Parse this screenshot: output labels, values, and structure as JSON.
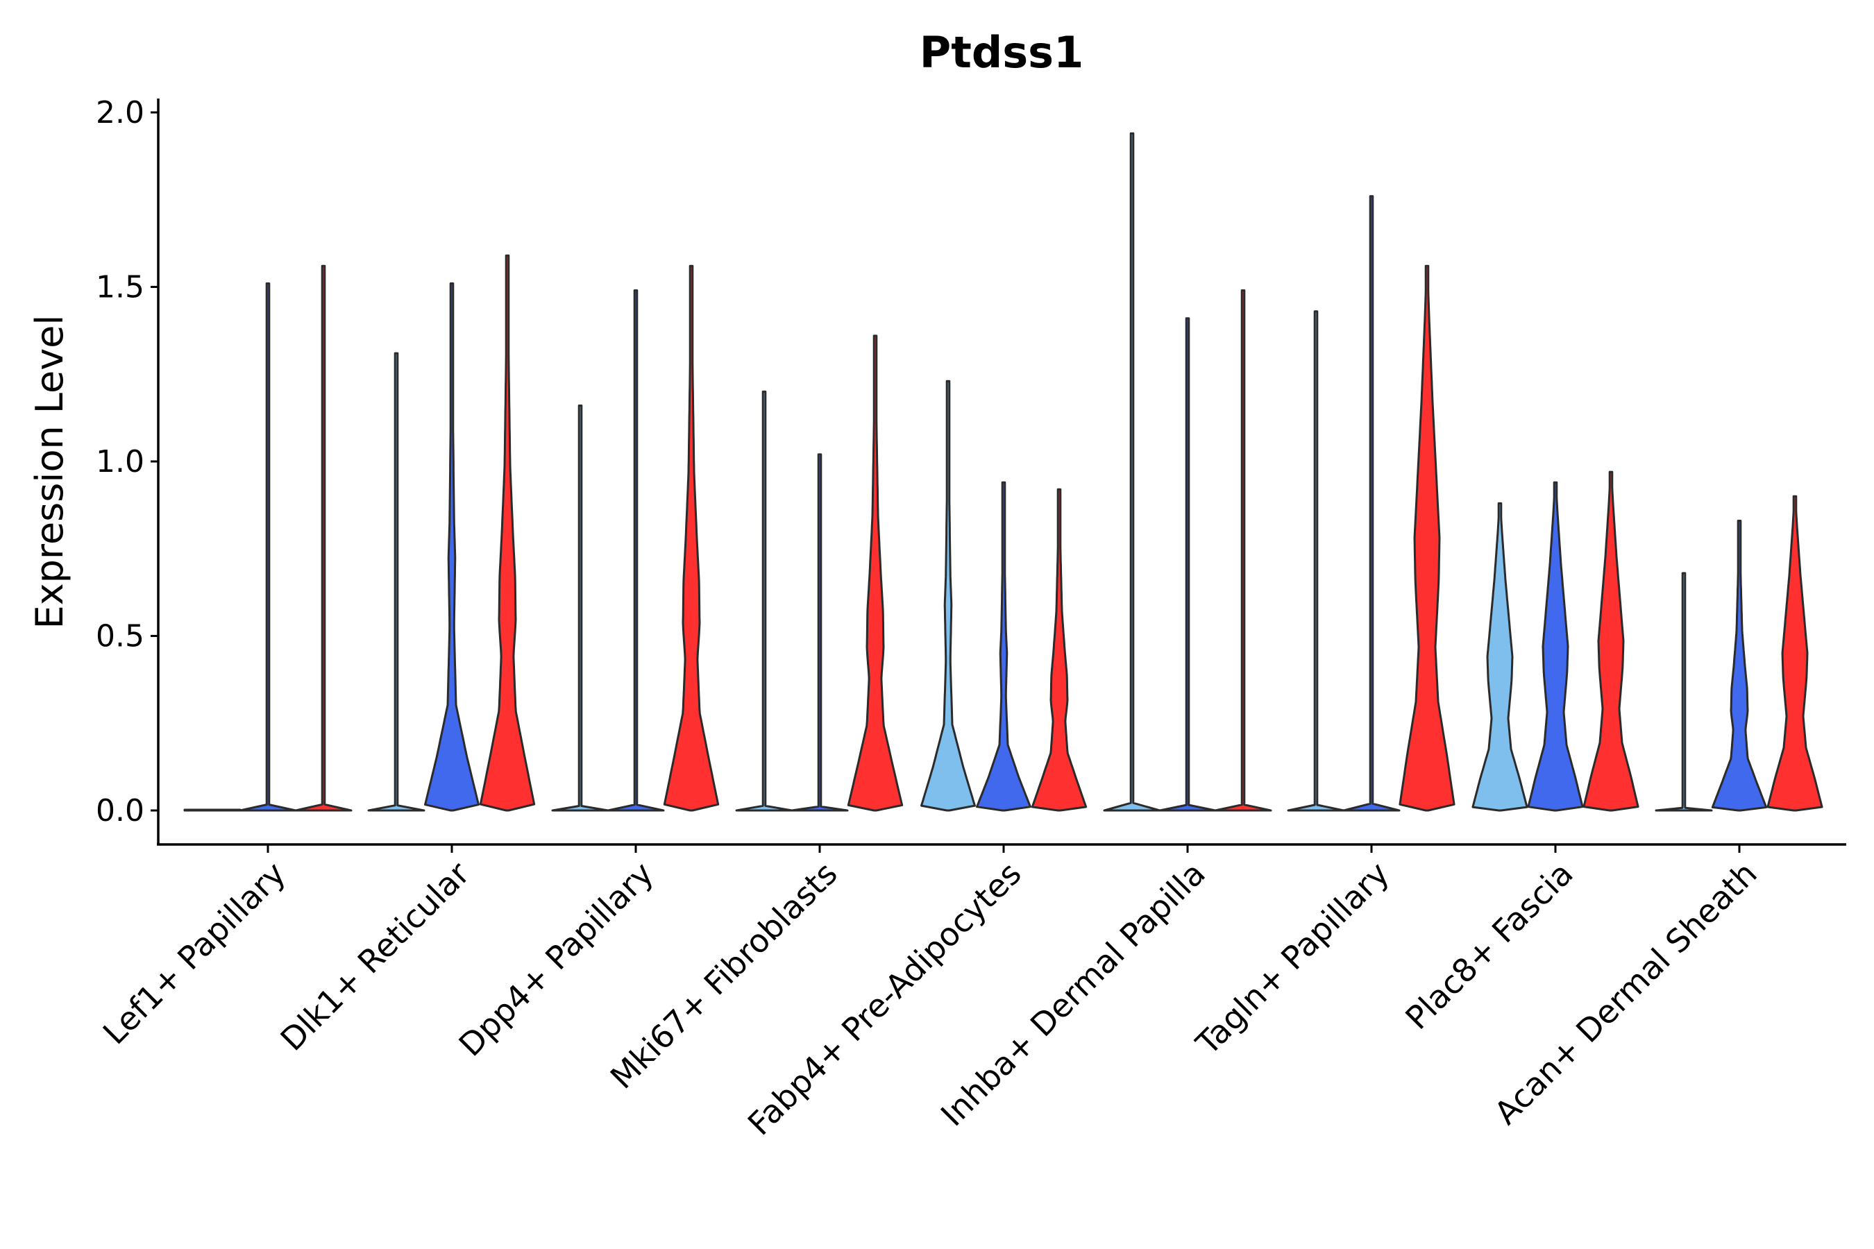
{
  "chart_data": {
    "type": "violin",
    "title": "Ptdss1",
    "xlabel": "",
    "ylabel": "Expression Level",
    "ylim": [
      -0.1,
      2.05
    ],
    "yticks": [
      0.0,
      0.5,
      1.0,
      1.5,
      2.0
    ],
    "ytick_labels": [
      "0.0",
      "0.5",
      "1.0",
      "1.5",
      "2.0"
    ],
    "grid": false,
    "legend": "none",
    "series_colors": [
      "#7fbfee",
      "#4169ee",
      "#ff3030"
    ],
    "categories": [
      "Lef1+ Papillary",
      "Dlk1+ Reticular",
      "Dpp4+ Papillary",
      "Mki67+ Fibroblasts",
      "Fabp4+ Pre-Adipocytes",
      "Inhba+ Dermal Papilla",
      "Tagln+ Papillary",
      "Plac8+ Fascia",
      "Acan+ Dermal Sheath"
    ],
    "groups": [
      [
        {
          "max": 0.0,
          "shape": "flat"
        },
        {
          "max": 1.51,
          "shape": "flat"
        },
        {
          "max": 1.56,
          "shape": "flat"
        }
      ],
      [
        {
          "max": 1.31,
          "shape": "flat"
        },
        {
          "max": 1.51,
          "shape": "low"
        },
        {
          "max": 1.59,
          "shape": "mid"
        }
      ],
      [
        {
          "max": 1.16,
          "shape": "flat"
        },
        {
          "max": 1.49,
          "shape": "flat"
        },
        {
          "max": 1.56,
          "shape": "mid"
        }
      ],
      [
        {
          "max": 1.2,
          "shape": "flat"
        },
        {
          "max": 1.02,
          "shape": "flat"
        },
        {
          "max": 1.36,
          "shape": "mid"
        }
      ],
      [
        {
          "max": 1.23,
          "shape": "low"
        },
        {
          "max": 0.94,
          "shape": "low"
        },
        {
          "max": 0.92,
          "shape": "mid"
        }
      ],
      [
        {
          "max": 1.94,
          "shape": "flat"
        },
        {
          "max": 1.41,
          "shape": "flat"
        },
        {
          "max": 1.49,
          "shape": "flat"
        }
      ],
      [
        {
          "max": 1.43,
          "shape": "flat"
        },
        {
          "max": 1.76,
          "shape": "flat"
        },
        {
          "max": 1.56,
          "shape": "wide"
        }
      ],
      [
        {
          "max": 0.88,
          "shape": "wide"
        },
        {
          "max": 0.94,
          "shape": "wide"
        },
        {
          "max": 0.97,
          "shape": "wide"
        }
      ],
      [
        {
          "max": 0.68,
          "shape": "flat"
        },
        {
          "max": 0.83,
          "shape": "mid"
        },
        {
          "max": 0.9,
          "shape": "wide"
        }
      ]
    ]
  }
}
